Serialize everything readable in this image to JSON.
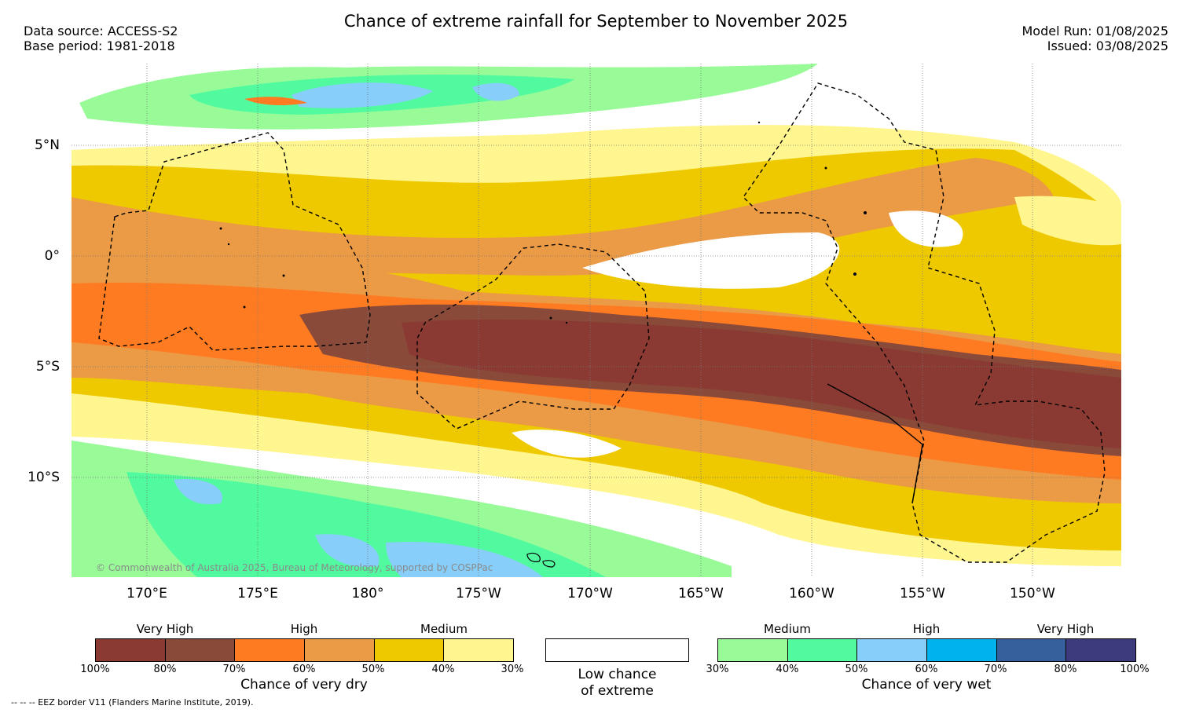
{
  "header": {
    "title": "Chance of extreme rainfall for September to November 2025",
    "data_source": "Data source: ACCESS-S2",
    "base_period": "Base period: 1981-2018",
    "model_run": "Model Run: 01/08/2025",
    "issued": "Issued: 03/08/2025"
  },
  "map": {
    "lat_labels": [
      "5°N",
      "0°",
      "5°S",
      "10°S"
    ],
    "lon_labels": [
      "170°E",
      "175°E",
      "180°",
      "175°W",
      "170°W",
      "165°W",
      "160°W",
      "155°W",
      "150°W"
    ],
    "copyright": "© Commonwealth of Australia 2025, Bureau of Meteorology, supported by COSPPac"
  },
  "legend_dry": {
    "levels": [
      "Very High",
      "High",
      "Medium"
    ],
    "ticks": [
      "100%",
      "80%",
      "70%",
      "60%",
      "50%",
      "40%",
      "30%"
    ],
    "caption": "Chance of very dry",
    "colors": [
      "#8b3a33",
      "#8a4a3a",
      "#ff7b22",
      "#eb9a45",
      "#eec900",
      "#fff68f"
    ]
  },
  "legend_low": {
    "line1": "Low chance",
    "line2": "of extreme"
  },
  "legend_wet": {
    "levels": [
      "Medium",
      "High",
      "Very High"
    ],
    "ticks": [
      "30%",
      "40%",
      "50%",
      "60%",
      "70%",
      "80%",
      "100%"
    ],
    "caption": "Chance of very wet",
    "colors": [
      "#98fb98",
      "#52fa9f",
      "#87cefa",
      "#00b2ee",
      "#36609c",
      "#3d3a7d"
    ]
  },
  "footnote": "--  --  -- EEZ border V11 (Flanders Marine Institute, 2019)."
}
